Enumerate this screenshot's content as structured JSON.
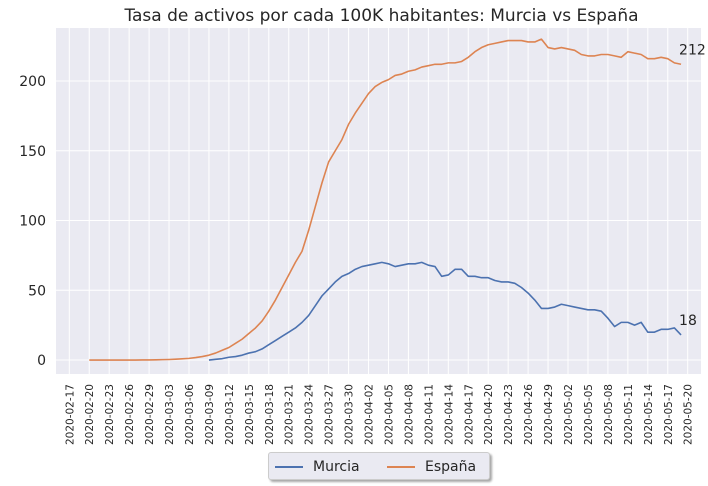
{
  "chart_data": {
    "type": "line",
    "title": "Tasa de activos por cada 100K habitantes: Murcia vs España",
    "xlabel": "",
    "ylabel": "",
    "x_ticks": [
      "2020-02-17",
      "2020-02-20",
      "2020-02-23",
      "2020-02-26",
      "2020-02-29",
      "2020-03-03",
      "2020-03-06",
      "2020-03-09",
      "2020-03-12",
      "2020-03-15",
      "2020-03-18",
      "2020-03-21",
      "2020-03-24",
      "2020-03-27",
      "2020-03-30",
      "2020-04-02",
      "2020-04-05",
      "2020-04-08",
      "2020-04-11",
      "2020-04-14",
      "2020-04-17",
      "2020-04-20",
      "2020-04-23",
      "2020-04-26",
      "2020-04-29",
      "2020-05-02",
      "2020-05-05",
      "2020-05-08",
      "2020-05-11",
      "2020-05-14",
      "2020-05-17",
      "2020-05-20"
    ],
    "y_ticks": [
      0,
      50,
      100,
      150,
      200
    ],
    "ylim": [
      -10,
      238
    ],
    "xlim": [
      "2020-02-15",
      "2020-05-22"
    ],
    "grid": true,
    "legend_position": "bottom-center",
    "series": [
      {
        "name": "Murcia",
        "color": "#4c72b0",
        "end_label": "18",
        "points": [
          [
            "2020-03-09",
            0
          ],
          [
            "2020-03-10",
            0.5
          ],
          [
            "2020-03-11",
            1
          ],
          [
            "2020-03-12",
            2
          ],
          [
            "2020-03-13",
            2.5
          ],
          [
            "2020-03-14",
            3.5
          ],
          [
            "2020-03-15",
            5
          ],
          [
            "2020-03-16",
            6
          ],
          [
            "2020-03-17",
            8
          ],
          [
            "2020-03-18",
            11
          ],
          [
            "2020-03-19",
            14
          ],
          [
            "2020-03-20",
            17
          ],
          [
            "2020-03-21",
            20
          ],
          [
            "2020-03-22",
            23
          ],
          [
            "2020-03-23",
            27
          ],
          [
            "2020-03-24",
            32
          ],
          [
            "2020-03-25",
            39
          ],
          [
            "2020-03-26",
            46
          ],
          [
            "2020-03-27",
            51
          ],
          [
            "2020-03-28",
            56
          ],
          [
            "2020-03-29",
            60
          ],
          [
            "2020-03-30",
            62
          ],
          [
            "2020-03-31",
            65
          ],
          [
            "2020-04-01",
            67
          ],
          [
            "2020-04-02",
            68
          ],
          [
            "2020-04-03",
            69
          ],
          [
            "2020-04-04",
            70
          ],
          [
            "2020-04-05",
            69
          ],
          [
            "2020-04-06",
            67
          ],
          [
            "2020-04-07",
            68
          ],
          [
            "2020-04-08",
            69
          ],
          [
            "2020-04-09",
            69
          ],
          [
            "2020-04-10",
            70
          ],
          [
            "2020-04-11",
            68
          ],
          [
            "2020-04-12",
            67
          ],
          [
            "2020-04-13",
            60
          ],
          [
            "2020-04-14",
            61
          ],
          [
            "2020-04-15",
            65
          ],
          [
            "2020-04-16",
            65
          ],
          [
            "2020-04-17",
            60
          ],
          [
            "2020-04-18",
            60
          ],
          [
            "2020-04-19",
            59
          ],
          [
            "2020-04-20",
            59
          ],
          [
            "2020-04-21",
            57
          ],
          [
            "2020-04-22",
            56
          ],
          [
            "2020-04-23",
            56
          ],
          [
            "2020-04-24",
            55
          ],
          [
            "2020-04-25",
            52
          ],
          [
            "2020-04-26",
            48
          ],
          [
            "2020-04-27",
            43
          ],
          [
            "2020-04-28",
            37
          ],
          [
            "2020-04-29",
            37
          ],
          [
            "2020-04-30",
            38
          ],
          [
            "2020-05-01",
            40
          ],
          [
            "2020-05-02",
            39
          ],
          [
            "2020-05-03",
            38
          ],
          [
            "2020-05-04",
            37
          ],
          [
            "2020-05-05",
            36
          ],
          [
            "2020-05-06",
            36
          ],
          [
            "2020-05-07",
            35
          ],
          [
            "2020-05-08",
            30
          ],
          [
            "2020-05-09",
            24
          ],
          [
            "2020-05-10",
            27
          ],
          [
            "2020-05-11",
            27
          ],
          [
            "2020-05-12",
            25
          ],
          [
            "2020-05-13",
            27
          ],
          [
            "2020-05-14",
            20
          ],
          [
            "2020-05-15",
            20
          ],
          [
            "2020-05-16",
            22
          ],
          [
            "2020-05-17",
            22
          ],
          [
            "2020-05-18",
            23
          ],
          [
            "2020-05-19",
            18
          ]
        ]
      },
      {
        "name": "España",
        "color": "#dd8452",
        "end_label": "212",
        "points": [
          [
            "2020-02-20",
            0
          ],
          [
            "2020-02-21",
            0
          ],
          [
            "2020-02-22",
            0
          ],
          [
            "2020-02-23",
            0
          ],
          [
            "2020-02-24",
            0
          ],
          [
            "2020-02-25",
            0
          ],
          [
            "2020-02-26",
            0
          ],
          [
            "2020-02-27",
            0
          ],
          [
            "2020-02-28",
            0.1
          ],
          [
            "2020-02-29",
            0.1
          ],
          [
            "2020-03-01",
            0.2
          ],
          [
            "2020-03-02",
            0.3
          ],
          [
            "2020-03-03",
            0.4
          ],
          [
            "2020-03-04",
            0.6
          ],
          [
            "2020-03-05",
            0.9
          ],
          [
            "2020-03-06",
            1.2
          ],
          [
            "2020-03-07",
            1.8
          ],
          [
            "2020-03-08",
            2.5
          ],
          [
            "2020-03-09",
            3.5
          ],
          [
            "2020-03-10",
            5
          ],
          [
            "2020-03-11",
            7
          ],
          [
            "2020-03-12",
            9
          ],
          [
            "2020-03-13",
            12
          ],
          [
            "2020-03-14",
            15
          ],
          [
            "2020-03-15",
            19
          ],
          [
            "2020-03-16",
            23
          ],
          [
            "2020-03-17",
            28
          ],
          [
            "2020-03-18",
            35
          ],
          [
            "2020-03-19",
            43
          ],
          [
            "2020-03-20",
            52
          ],
          [
            "2020-03-21",
            61
          ],
          [
            "2020-03-22",
            70
          ],
          [
            "2020-03-23",
            78
          ],
          [
            "2020-03-24",
            93
          ],
          [
            "2020-03-25",
            110
          ],
          [
            "2020-03-26",
            127
          ],
          [
            "2020-03-27",
            142
          ],
          [
            "2020-03-28",
            150
          ],
          [
            "2020-03-29",
            158
          ],
          [
            "2020-03-30",
            169
          ],
          [
            "2020-03-31",
            177
          ],
          [
            "2020-04-01",
            184
          ],
          [
            "2020-04-02",
            191
          ],
          [
            "2020-04-03",
            196
          ],
          [
            "2020-04-04",
            199
          ],
          [
            "2020-04-05",
            201
          ],
          [
            "2020-04-06",
            204
          ],
          [
            "2020-04-07",
            205
          ],
          [
            "2020-04-08",
            207
          ],
          [
            "2020-04-09",
            208
          ],
          [
            "2020-04-10",
            210
          ],
          [
            "2020-04-11",
            211
          ],
          [
            "2020-04-12",
            212
          ],
          [
            "2020-04-13",
            212
          ],
          [
            "2020-04-14",
            213
          ],
          [
            "2020-04-15",
            213
          ],
          [
            "2020-04-16",
            214
          ],
          [
            "2020-04-17",
            217
          ],
          [
            "2020-04-18",
            221
          ],
          [
            "2020-04-19",
            224
          ],
          [
            "2020-04-20",
            226
          ],
          [
            "2020-04-21",
            227
          ],
          [
            "2020-04-22",
            228
          ],
          [
            "2020-04-23",
            229
          ],
          [
            "2020-04-24",
            229
          ],
          [
            "2020-04-25",
            229
          ],
          [
            "2020-04-26",
            228
          ],
          [
            "2020-04-27",
            228
          ],
          [
            "2020-04-28",
            230
          ],
          [
            "2020-04-29",
            224
          ],
          [
            "2020-04-30",
            223
          ],
          [
            "2020-05-01",
            224
          ],
          [
            "2020-05-02",
            223
          ],
          [
            "2020-05-03",
            222
          ],
          [
            "2020-05-04",
            219
          ],
          [
            "2020-05-05",
            218
          ],
          [
            "2020-05-06",
            218
          ],
          [
            "2020-05-07",
            219
          ],
          [
            "2020-05-08",
            219
          ],
          [
            "2020-05-09",
            218
          ],
          [
            "2020-05-10",
            217
          ],
          [
            "2020-05-11",
            221
          ],
          [
            "2020-05-12",
            220
          ],
          [
            "2020-05-13",
            219
          ],
          [
            "2020-05-14",
            216
          ],
          [
            "2020-05-15",
            216
          ],
          [
            "2020-05-16",
            217
          ],
          [
            "2020-05-17",
            216
          ],
          [
            "2020-05-18",
            213
          ],
          [
            "2020-05-19",
            212
          ]
        ]
      }
    ]
  }
}
